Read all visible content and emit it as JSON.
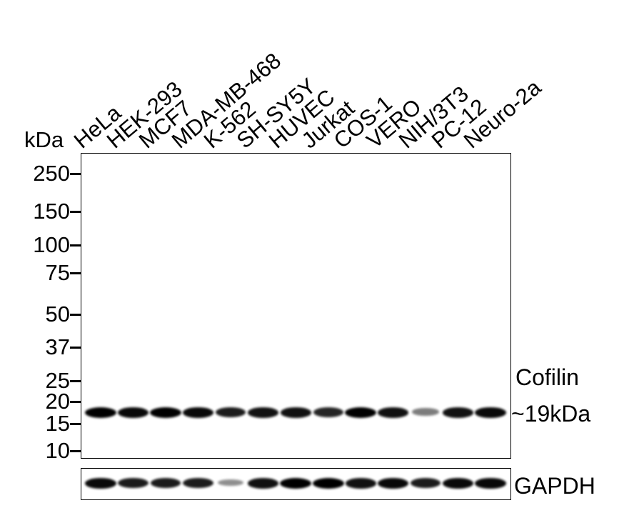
{
  "blot": {
    "kda_unit": "kDa",
    "lanes": [
      "HeLa",
      "HEK-293",
      "MCF7",
      "MDA-MB-468",
      "K-562",
      "SH-SY5Y",
      "HUVEC",
      "Jurkat",
      "COS-1",
      "VERO",
      "NIH/3T3",
      "PC-12",
      "Neuro-2a"
    ],
    "markers": [
      "250",
      "150",
      "100",
      "75",
      "50",
      "37",
      "25",
      "20",
      "15",
      "10"
    ],
    "target_label": "Cofilin",
    "target_size": "~19kDa",
    "loading_control": "GAPDH",
    "band_color": "#000000"
  }
}
